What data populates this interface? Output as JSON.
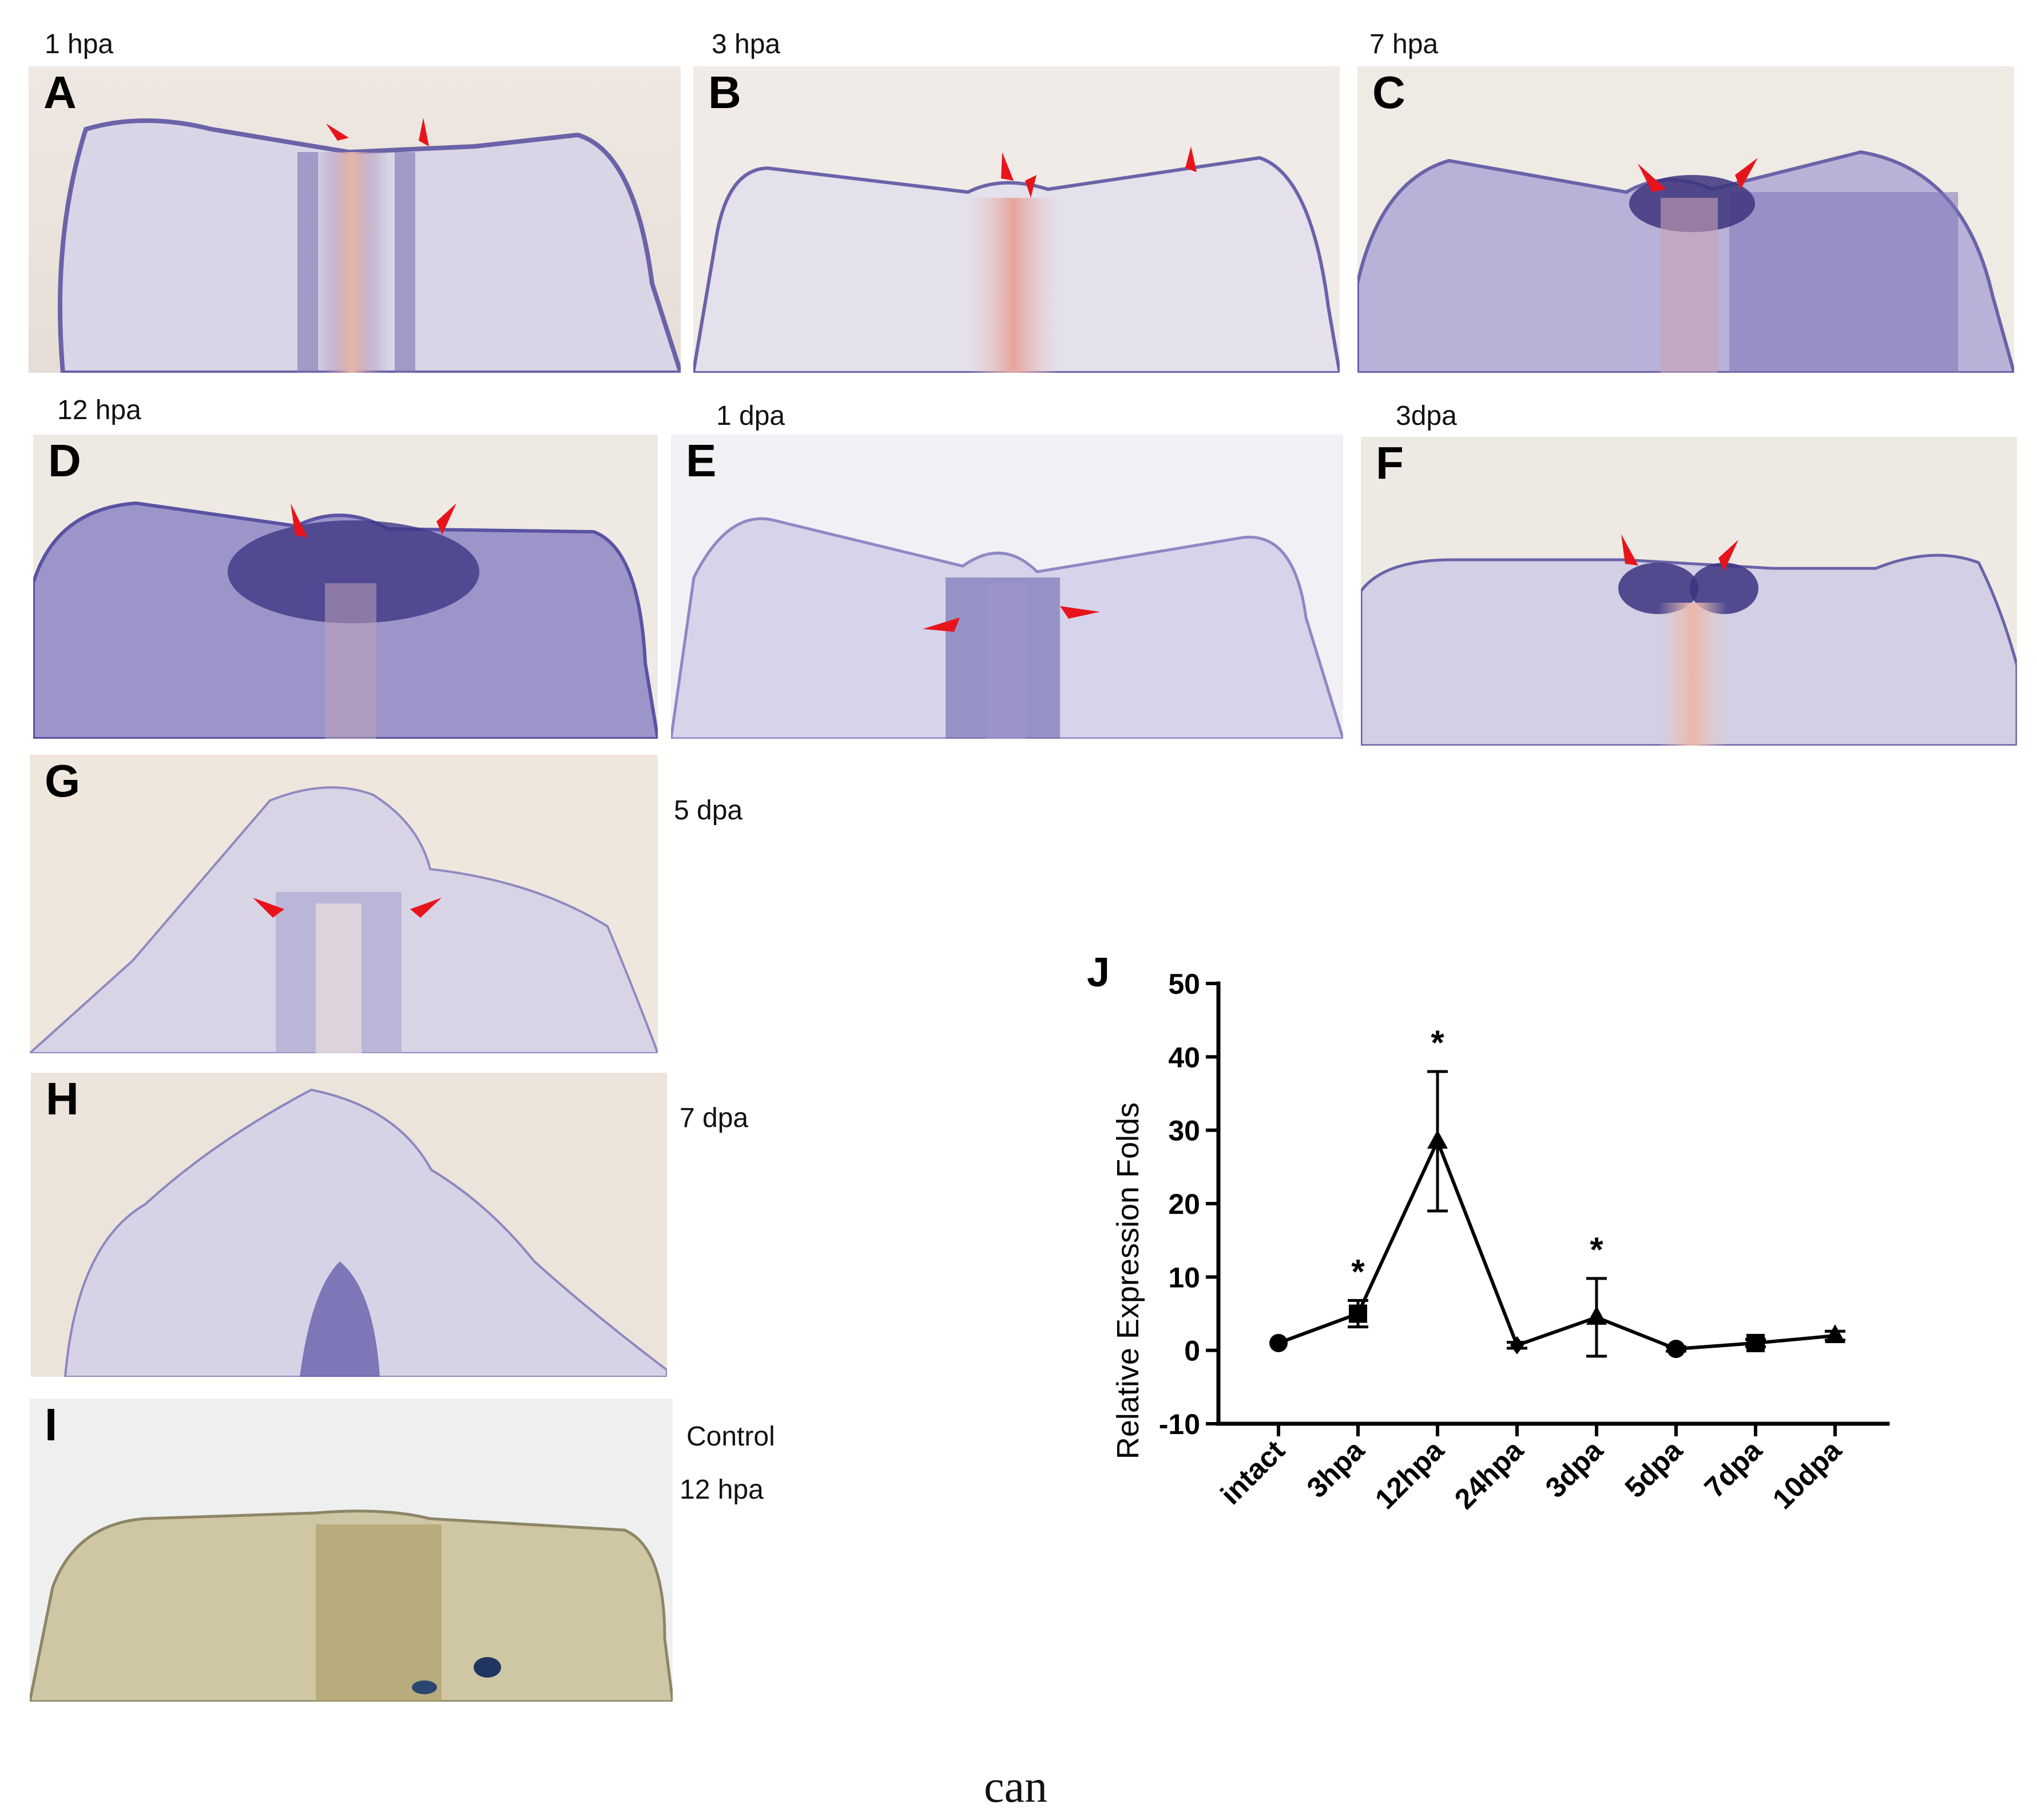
{
  "figure": {
    "caption_word": "can",
    "panels": [
      {
        "id": "A",
        "label": "A",
        "time": "1 hpa"
      },
      {
        "id": "B",
        "label": "B",
        "time": "3 hpa"
      },
      {
        "id": "C",
        "label": "C",
        "time": "7 hpa"
      },
      {
        "id": "D",
        "label": "D",
        "time": "12 hpa"
      },
      {
        "id": "E",
        "label": "E",
        "time": "1 dpa"
      },
      {
        "id": "F",
        "label": "F",
        "time": "3dpa"
      },
      {
        "id": "G",
        "label": "G",
        "time": "5 dpa"
      },
      {
        "id": "H",
        "label": "H",
        "time": "7 dpa"
      },
      {
        "id": "I",
        "label": "I",
        "time": "Control",
        "time2": "12 hpa"
      }
    ],
    "colors": {
      "arrow": "#e8141c",
      "stain": "#5a53a3",
      "tissue": "#e9e6ee",
      "control_tissue": "#d4ccab"
    }
  },
  "chart_data": {
    "type": "line",
    "panel_label": "J",
    "xlabel": "",
    "ylabel": "Relative Expression Folds",
    "ylim": [
      -10,
      50
    ],
    "yticks": [
      -10,
      0,
      10,
      20,
      30,
      40,
      50
    ],
    "categories": [
      "intact",
      "3hpa",
      "12hpa",
      "24hpa",
      "3dpa",
      "5dpa",
      "7dpa",
      "10dpa"
    ],
    "values": [
      1,
      5,
      28.5,
      0.7,
      4.5,
      0.2,
      1,
      2
    ],
    "errors": [
      0,
      1.8,
      9.5,
      0.4,
      5.3,
      0.3,
      0.5,
      0.6
    ],
    "markers": [
      "circle",
      "square",
      "triangle",
      "diamond",
      "triangle",
      "circle",
      "square",
      "triangle"
    ],
    "significance": [
      "",
      "*",
      "*",
      "",
      "*",
      "",
      "",
      ""
    ],
    "grid": false
  }
}
